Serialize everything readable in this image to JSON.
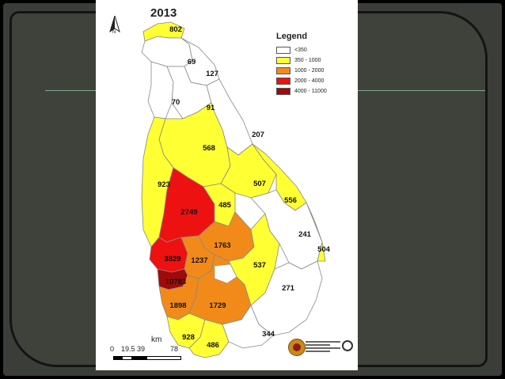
{
  "map": {
    "title": "2013",
    "north_letter": "N",
    "legend": {
      "title": "Legend",
      "items": [
        {
          "label": "<350",
          "color": "#ffffff"
        },
        {
          "label": "350 - 1000",
          "color": "#ffff33"
        },
        {
          "label": "1000 - 2000",
          "color": "#f28a1a"
        },
        {
          "label": "2000 - 4000",
          "color": "#ee1111"
        },
        {
          "label": "4000 - 11000",
          "color": "#a00a0a"
        }
      ]
    },
    "scale": {
      "unit": "km",
      "ticks": [
        "0",
        "19.5 39",
        "78"
      ]
    },
    "districts": [
      {
        "id": "jaffna",
        "value": "802"
      },
      {
        "id": "kilinochchi",
        "value": "69"
      },
      {
        "id": "mullaitivu",
        "value": "127"
      },
      {
        "id": "mannar",
        "value": "70"
      },
      {
        "id": "vavuniya",
        "value": "91"
      },
      {
        "id": "trincomalee",
        "value": "207"
      },
      {
        "id": "anuradhapura",
        "value": "568"
      },
      {
        "id": "puttalam",
        "value": "923"
      },
      {
        "id": "polonnaruwa",
        "value": "507"
      },
      {
        "id": "batticaloa",
        "value": "556"
      },
      {
        "id": "kurunegala",
        "value": "2749"
      },
      {
        "id": "matale",
        "value": "485"
      },
      {
        "id": "ampara",
        "value": "241"
      },
      {
        "id": "ampara_coast",
        "value": "504"
      },
      {
        "id": "kandy",
        "value": "1763"
      },
      {
        "id": "gampaha",
        "value": "3829"
      },
      {
        "id": "kegalle",
        "value": "1237"
      },
      {
        "id": "badulla",
        "value": "537"
      },
      {
        "id": "colombo",
        "value": "10783"
      },
      {
        "id": "monaragala",
        "value": "271"
      },
      {
        "id": "kalutara",
        "value": "1898"
      },
      {
        "id": "ratnapura",
        "value": "1729"
      },
      {
        "id": "hambantota",
        "value": "344"
      },
      {
        "id": "galle",
        "value": "928"
      },
      {
        "id": "matara",
        "value": "486"
      }
    ]
  }
}
